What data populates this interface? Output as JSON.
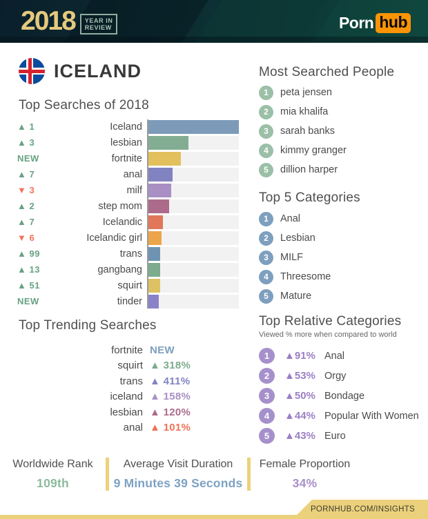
{
  "header": {
    "year": "2018",
    "badge_line1": "YEAR IN",
    "badge_line2": "REVIEW",
    "brand_porn": "Porn",
    "brand_hub": "hub"
  },
  "country": {
    "name": "ICELAND"
  },
  "colors": {
    "up_green": "#68a183",
    "down_red": "#f2735a",
    "gold": "#ecd17c",
    "people_circle": "#9bbfa7",
    "category_circle": "#7e9fbe",
    "relative_circle": "#a690cc",
    "relative_accent": "#9b7fc4"
  },
  "chart_data": {
    "type": "bar",
    "orientation": "horizontal",
    "title": "Top Searches of 2018",
    "categories": [
      "Iceland",
      "lesbian",
      "fortnite",
      "anal",
      "milf",
      "step mom",
      "Icelandic",
      "Icelandic girl",
      "trans",
      "gangbang",
      "squirt",
      "tinder"
    ],
    "values": [
      100,
      44.6,
      35.6,
      26.5,
      25.3,
      22.7,
      15.7,
      14.4,
      13.1,
      13.1,
      12.9,
      11.3
    ],
    "value_unit": "relative search volume, % of longest bar (estimated from pixels)",
    "rank_changes": [
      "▲ 1",
      "▲ 3",
      "NEW",
      "▲ 7",
      "▼ 3",
      "▲ 2",
      "▲ 7",
      "▼ 6",
      "▲ 99",
      "▲ 13",
      "▲ 51",
      "NEW"
    ],
    "change_colors": [
      "#68a183",
      "#68a183",
      "#68a183",
      "#68a183",
      "#f2735a",
      "#68a183",
      "#68a183",
      "#f2735a",
      "#68a183",
      "#68a183",
      "#68a183",
      "#68a183"
    ],
    "colors": [
      "#7d9bb9",
      "#83ad92",
      "#e2c05c",
      "#8183c1",
      "#a88fc4",
      "#ac6b8b",
      "#e0765a",
      "#eca54a",
      "#6f94b3",
      "#7cab8e",
      "#ddc163",
      "#8a82c8"
    ],
    "track_color": "#f2f2f2",
    "axis_color": "#9a9a9a",
    "legend": "none",
    "grid": "off"
  },
  "trending": {
    "title": "Top Trending Searches",
    "items": [
      {
        "term": "fortnite",
        "change": "NEW",
        "color": "#7e9fbe"
      },
      {
        "term": "squirt",
        "change": "▲ 318%",
        "color": "#7cab8e"
      },
      {
        "term": "trans",
        "change": "▲ 411%",
        "color": "#8183c1"
      },
      {
        "term": "iceland",
        "change": "▲ 158%",
        "color": "#a88fc4"
      },
      {
        "term": "lesbian",
        "change": "▲ 120%",
        "color": "#ac6b8b"
      },
      {
        "term": "anal",
        "change": "▲ 101%",
        "color": "#ed7257"
      }
    ]
  },
  "people": {
    "title": "Most Searched People",
    "items": [
      {
        "rank": "1",
        "name": "peta jensen"
      },
      {
        "rank": "2",
        "name": "mia khalifa"
      },
      {
        "rank": "3",
        "name": "sarah banks"
      },
      {
        "rank": "4",
        "name": "kimmy granger"
      },
      {
        "rank": "5",
        "name": "dillion harper"
      }
    ]
  },
  "categories": {
    "title": "Top 5 Categories",
    "items": [
      {
        "rank": "1",
        "name": "Anal"
      },
      {
        "rank": "2",
        "name": "Lesbian"
      },
      {
        "rank": "3",
        "name": "MILF"
      },
      {
        "rank": "4",
        "name": "Threesome"
      },
      {
        "rank": "5",
        "name": "Mature"
      }
    ]
  },
  "relative": {
    "title": "Top Relative Categories",
    "subtitle": "Viewed % more when compared to world",
    "items": [
      {
        "rank": "1",
        "change": "▲91%",
        "name": "Anal"
      },
      {
        "rank": "2",
        "change": "▲53%",
        "name": "Orgy"
      },
      {
        "rank": "3",
        "change": "▲50%",
        "name": "Bondage"
      },
      {
        "rank": "4",
        "change": "▲44%",
        "name": "Popular With Women"
      },
      {
        "rank": "5",
        "change": "▲43%",
        "name": "Euro"
      }
    ]
  },
  "stats": [
    {
      "label": "Worldwide Rank",
      "value": "109th",
      "color": "#8cba9d"
    },
    {
      "label": "Average Visit Duration",
      "value": "9 Minutes 39 Seconds",
      "color": "#7da2c2"
    },
    {
      "label": "Female Proportion",
      "value": "34%",
      "color": "#a78fc8"
    }
  ],
  "footer": {
    "url": "PORNHUB.COM/INSIGHTS"
  }
}
